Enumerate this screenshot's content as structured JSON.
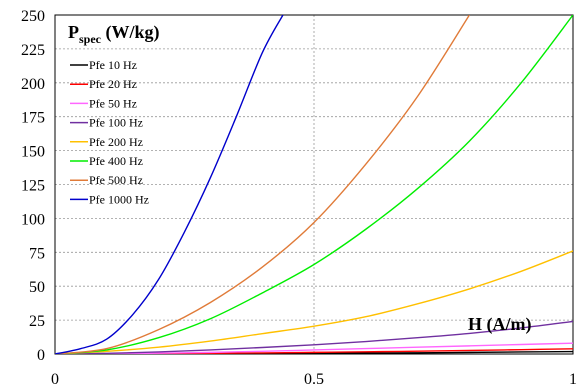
{
  "chart_data": {
    "type": "line",
    "ylabel": "P",
    "ylabel_subscript": "spec",
    "ylabel_unit": " (W/kg)",
    "xlabel": "H (A/m)",
    "xlim": [
      0,
      1
    ],
    "ylim": [
      0,
      250
    ],
    "xticks": [
      0,
      0.5,
      1
    ],
    "xtick_labels": [
      "0",
      "0.5",
      "1"
    ],
    "yticks": [
      0,
      25,
      50,
      75,
      100,
      125,
      150,
      175,
      200,
      225,
      250
    ],
    "grid": "dashed",
    "legend_position": "top-left",
    "series": [
      {
        "name": "Pfe 10 Hz",
        "color": "#000000",
        "x": [
          0,
          0.1,
          0.2,
          0.3,
          0.4,
          0.5,
          0.6,
          0.7,
          0.8,
          0.9,
          1.0
        ],
        "y": [
          0,
          0.05,
          0.1,
          0.2,
          0.3,
          0.5,
          0.7,
          0.9,
          1.2,
          1.5,
          1.8
        ]
      },
      {
        "name": "Pfe 20 Hz",
        "color": "#ff0000",
        "x": [
          0,
          0.1,
          0.2,
          0.3,
          0.4,
          0.5,
          0.6,
          0.7,
          0.8,
          0.9,
          1.0
        ],
        "y": [
          0,
          0.1,
          0.3,
          0.5,
          0.8,
          1.2,
          1.6,
          2.1,
          2.6,
          3.2,
          3.8
        ]
      },
      {
        "name": "Pfe 50 Hz",
        "color": "#ff66ff",
        "x": [
          0,
          0.1,
          0.2,
          0.3,
          0.4,
          0.5,
          0.6,
          0.7,
          0.8,
          0.9,
          1.0
        ],
        "y": [
          0,
          0.2,
          0.6,
          1.2,
          2.0,
          3.0,
          4.0,
          5.0,
          6.0,
          7.0,
          8.0
        ]
      },
      {
        "name": "Pfe 100 Hz",
        "color": "#7030a0",
        "x": [
          0,
          0.1,
          0.2,
          0.3,
          0.4,
          0.5,
          0.6,
          0.7,
          0.8,
          0.9,
          1.0
        ],
        "y": [
          0,
          0.5,
          1.5,
          3.0,
          4.8,
          6.8,
          9.2,
          12.0,
          15.2,
          19.2,
          24.0
        ]
      },
      {
        "name": "Pfe 200 Hz",
        "color": "#ffc000",
        "x": [
          0,
          0.1,
          0.2,
          0.3,
          0.4,
          0.5,
          0.6,
          0.7,
          0.8,
          0.9,
          1.0
        ],
        "y": [
          0,
          2,
          5,
          9.5,
          15,
          20.5,
          27.5,
          37,
          48,
          61,
          76
        ]
      },
      {
        "name": "Pfe 400 Hz",
        "color": "#00ee00",
        "x": [
          0,
          0.1,
          0.2,
          0.3,
          0.4,
          0.5,
          0.6,
          0.7,
          0.8,
          0.9,
          1.0
        ],
        "y": [
          0,
          3,
          12,
          26,
          45,
          66,
          92,
          122,
          157,
          200,
          250
        ]
      },
      {
        "name": "Pfe 500 Hz",
        "color": "#e07b39",
        "x": [
          0,
          0.1,
          0.2,
          0.3,
          0.4,
          0.5,
          0.6,
          0.7,
          0.8
        ],
        "y": [
          0,
          4,
          18,
          38,
          64,
          97,
          140,
          190,
          250
        ]
      },
      {
        "name": "Pfe 1000 Hz",
        "color": "#0000cc",
        "x": [
          0,
          0.05,
          0.1,
          0.15,
          0.2,
          0.25,
          0.3,
          0.35,
          0.4,
          0.44
        ],
        "y": [
          0,
          4,
          11,
          29,
          55,
          90,
          130,
          175,
          222,
          250
        ]
      }
    ]
  }
}
